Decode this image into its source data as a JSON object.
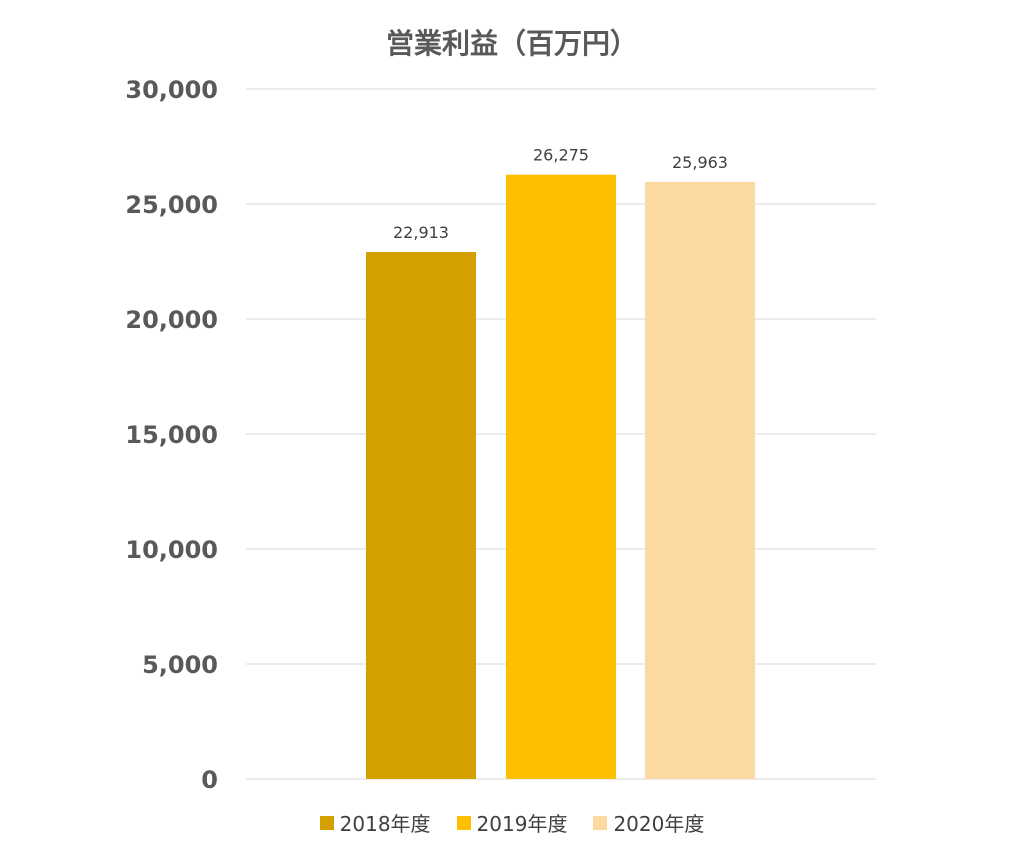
{
  "chart_data": {
    "type": "bar",
    "title": "営業利益（百万円）",
    "categories": [
      "2018年度",
      "2019年度",
      "2020年度"
    ],
    "values": [
      22913,
      26275,
      25963
    ],
    "value_labels": [
      "22,913",
      "26,275",
      "25,963"
    ],
    "colors": [
      "#d4a000",
      "#fdbf00",
      "#fcd9a0"
    ],
    "ylim": [
      0,
      30000
    ],
    "yticks": [
      {
        "value": 0,
        "label": "0"
      },
      {
        "value": 5000,
        "label": "5,000"
      },
      {
        "value": 10000,
        "label": "10,000"
      },
      {
        "value": 15000,
        "label": "15,000"
      },
      {
        "value": 20000,
        "label": "20,000"
      },
      {
        "value": 25000,
        "label": "25,000"
      },
      {
        "value": 30000,
        "label": "30,000"
      }
    ],
    "grid": true,
    "legend_position": "bottom",
    "xlabel": "",
    "ylabel": ""
  }
}
